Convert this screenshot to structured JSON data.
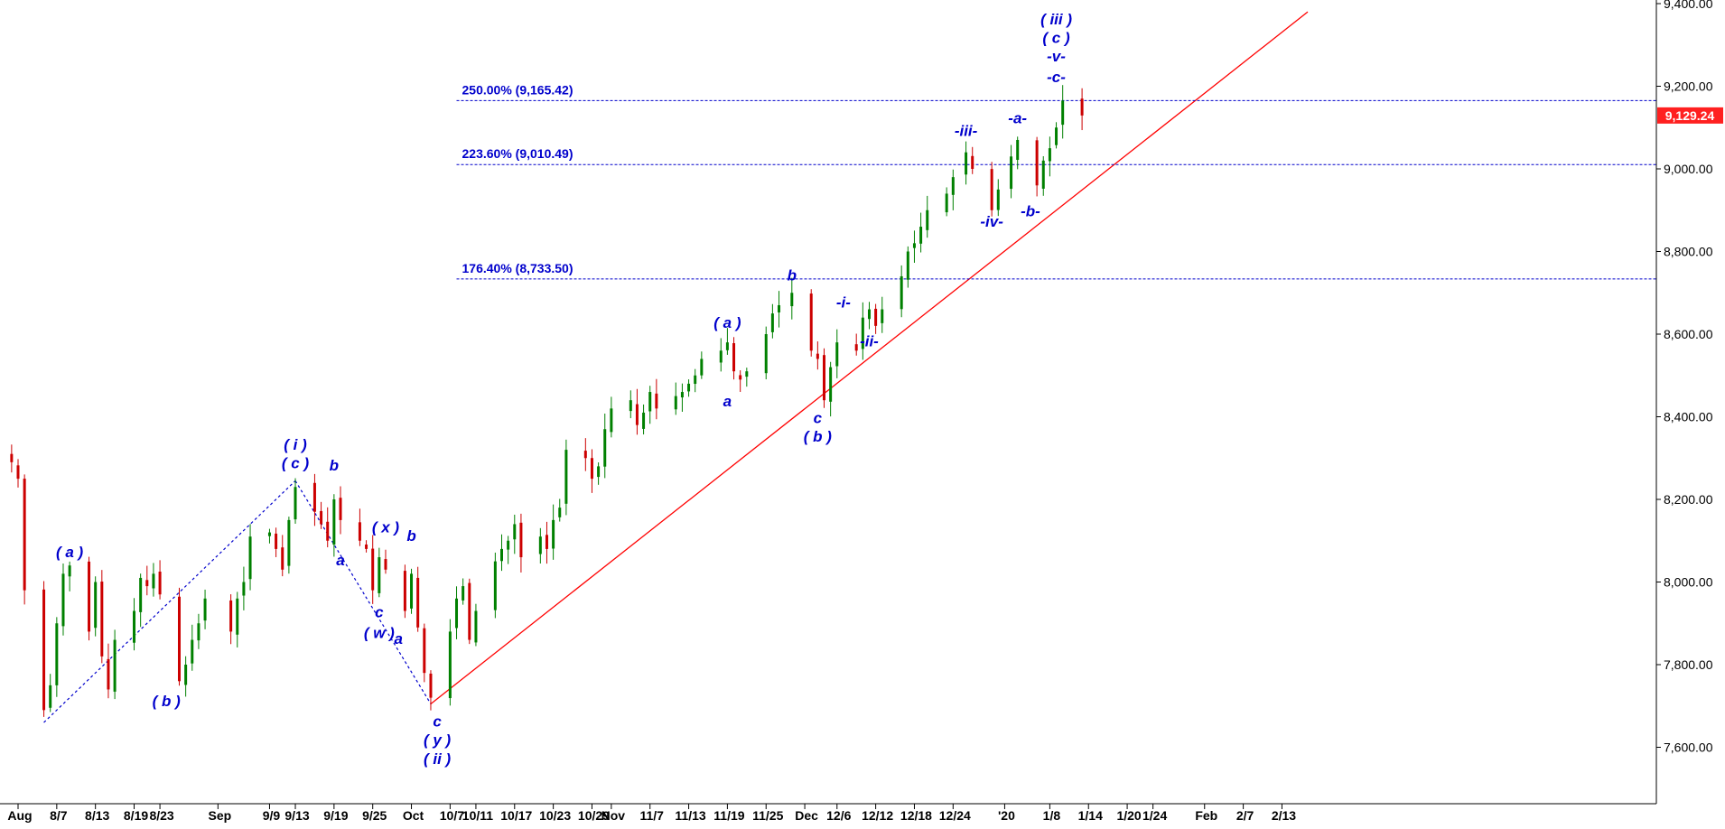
{
  "chart_data": {
    "type": "candlestick",
    "y_axis": {
      "range": [
        7440,
        9400
      ],
      "ticks": [
        "9,400.00",
        "9,200.00",
        "9,000.00",
        "8,800.00",
        "8,600.00",
        "8,400.00",
        "8,200.00",
        "8,000.00",
        "7,800.00",
        "7,600.00"
      ],
      "tick_values": [
        9400,
        9200,
        9000,
        8800,
        8600,
        8400,
        8200,
        8000,
        7800,
        7600
      ],
      "position": "right"
    },
    "x_axis": {
      "range": [
        "2019-07-31",
        "2020-02-17"
      ],
      "ticks": [
        {
          "label": "Aug",
          "date": "2019-08-01"
        },
        {
          "label": "8/7",
          "date": "2019-08-07"
        },
        {
          "label": "8/13",
          "date": "2019-08-13"
        },
        {
          "label": "8/19",
          "date": "2019-08-19"
        },
        {
          "label": "8/23",
          "date": "2019-08-23"
        },
        {
          "label": "Sep",
          "date": "2019-09-01"
        },
        {
          "label": "9/9",
          "date": "2019-09-09"
        },
        {
          "label": "9/13",
          "date": "2019-09-13"
        },
        {
          "label": "9/19",
          "date": "2019-09-19"
        },
        {
          "label": "9/25",
          "date": "2019-09-25"
        },
        {
          "label": "Oct",
          "date": "2019-10-01"
        },
        {
          "label": "10/7",
          "date": "2019-10-07"
        },
        {
          "label": "10/11",
          "date": "2019-10-11"
        },
        {
          "label": "10/17",
          "date": "2019-10-17"
        },
        {
          "label": "10/23",
          "date": "2019-10-23"
        },
        {
          "label": "10/29",
          "date": "2019-10-29"
        },
        {
          "label": "Nov",
          "date": "2019-11-01"
        },
        {
          "label": "11/7",
          "date": "2019-11-07"
        },
        {
          "label": "11/13",
          "date": "2019-11-13"
        },
        {
          "label": "11/19",
          "date": "2019-11-19"
        },
        {
          "label": "11/25",
          "date": "2019-11-25"
        },
        {
          "label": "Dec",
          "date": "2019-12-01"
        },
        {
          "label": "12/6",
          "date": "2019-12-06"
        },
        {
          "label": "12/12",
          "date": "2019-12-12"
        },
        {
          "label": "12/18",
          "date": "2019-12-18"
        },
        {
          "label": "12/24",
          "date": "2019-12-24"
        },
        {
          "label": "'20",
          "date": "2020-01-01"
        },
        {
          "label": "1/8",
          "date": "2020-01-08"
        },
        {
          "label": "1/14",
          "date": "2020-01-14"
        },
        {
          "label": "1/20",
          "date": "2020-01-20"
        },
        {
          "label": "1/24",
          "date": "2020-01-24"
        },
        {
          "label": "Feb",
          "date": "2020-02-01"
        },
        {
          "label": "2/7",
          "date": "2020-02-07"
        },
        {
          "label": "2/13",
          "date": "2020-02-13"
        }
      ]
    },
    "price_path": [
      {
        "date": "2019-07-31",
        "value": 8290
      },
      {
        "date": "2019-08-01",
        "value": 8250
      },
      {
        "date": "2019-08-02",
        "value": 7980
      },
      {
        "date": "2019-08-05",
        "value": 7690
      },
      {
        "date": "2019-08-06",
        "value": 7750
      },
      {
        "date": "2019-08-07",
        "value": 7900
      },
      {
        "date": "2019-08-08",
        "value": 8020
      },
      {
        "date": "2019-08-09",
        "value": 8040
      },
      {
        "date": "2019-08-12",
        "value": 7880
      },
      {
        "date": "2019-08-13",
        "value": 8000
      },
      {
        "date": "2019-08-14",
        "value": 7820
      },
      {
        "date": "2019-08-15",
        "value": 7740
      },
      {
        "date": "2019-08-16",
        "value": 7860
      },
      {
        "date": "2019-08-19",
        "value": 7930
      },
      {
        "date": "2019-08-20",
        "value": 8010
      },
      {
        "date": "2019-08-21",
        "value": 7990
      },
      {
        "date": "2019-08-22",
        "value": 8020
      },
      {
        "date": "2019-08-23",
        "value": 7970
      },
      {
        "date": "2019-08-26",
        "value": 7760
      },
      {
        "date": "2019-08-27",
        "value": 7800
      },
      {
        "date": "2019-08-28",
        "value": 7860
      },
      {
        "date": "2019-08-29",
        "value": 7900
      },
      {
        "date": "2019-08-30",
        "value": 7960
      },
      {
        "date": "2019-09-03",
        "value": 7880
      },
      {
        "date": "2019-09-04",
        "value": 7960
      },
      {
        "date": "2019-09-05",
        "value": 8000
      },
      {
        "date": "2019-09-06",
        "value": 8110
      },
      {
        "date": "2019-09-09",
        "value": 8120
      },
      {
        "date": "2019-09-10",
        "value": 8080
      },
      {
        "date": "2019-09-11",
        "value": 8030
      },
      {
        "date": "2019-09-12",
        "value": 8150
      },
      {
        "date": "2019-09-13",
        "value": 8230
      },
      {
        "date": "2019-09-16",
        "value": 8170
      },
      {
        "date": "2019-09-17",
        "value": 8140
      },
      {
        "date": "2019-09-18",
        "value": 8100
      },
      {
        "date": "2019-09-19",
        "value": 8200
      },
      {
        "date": "2019-09-20",
        "value": 8150
      },
      {
        "date": "2019-09-23",
        "value": 8100
      },
      {
        "date": "2019-09-24",
        "value": 8080
      },
      {
        "date": "2019-09-25",
        "value": 7980
      },
      {
        "date": "2019-09-26",
        "value": 8060
      },
      {
        "date": "2019-09-27",
        "value": 8030
      },
      {
        "date": "2019-09-30",
        "value": 7930
      },
      {
        "date": "2019-10-01",
        "value": 8020
      },
      {
        "date": "2019-10-02",
        "value": 7890
      },
      {
        "date": "2019-10-03",
        "value": 7780
      },
      {
        "date": "2019-10-04",
        "value": 7720
      },
      {
        "date": "2019-10-07",
        "value": 7880
      },
      {
        "date": "2019-10-08",
        "value": 7960
      },
      {
        "date": "2019-10-09",
        "value": 7990
      },
      {
        "date": "2019-10-10",
        "value": 7860
      },
      {
        "date": "2019-10-11",
        "value": 7930
      },
      {
        "date": "2019-10-14",
        "value": 8050
      },
      {
        "date": "2019-10-15",
        "value": 8080
      },
      {
        "date": "2019-10-16",
        "value": 8100
      },
      {
        "date": "2019-10-17",
        "value": 8140
      },
      {
        "date": "2019-10-18",
        "value": 8060
      },
      {
        "date": "2019-10-21",
        "value": 8110
      },
      {
        "date": "2019-10-22",
        "value": 8080
      },
      {
        "date": "2019-10-23",
        "value": 8150
      },
      {
        "date": "2019-10-24",
        "value": 8180
      },
      {
        "date": "2019-10-25",
        "value": 8320
      },
      {
        "date": "2019-10-28",
        "value": 8300
      },
      {
        "date": "2019-10-29",
        "value": 8250
      },
      {
        "date": "2019-10-30",
        "value": 8280
      },
      {
        "date": "2019-10-31",
        "value": 8370
      },
      {
        "date": "2019-11-01",
        "value": 8420
      },
      {
        "date": "2019-11-04",
        "value": 8440
      },
      {
        "date": "2019-11-05",
        "value": 8380
      },
      {
        "date": "2019-11-06",
        "value": 8410
      },
      {
        "date": "2019-11-07",
        "value": 8460
      },
      {
        "date": "2019-11-08",
        "value": 8420
      },
      {
        "date": "2019-11-11",
        "value": 8450
      },
      {
        "date": "2019-11-12",
        "value": 8460
      },
      {
        "date": "2019-11-13",
        "value": 8480
      },
      {
        "date": "2019-11-14",
        "value": 8500
      },
      {
        "date": "2019-11-15",
        "value": 8540
      },
      {
        "date": "2019-11-18",
        "value": 8560
      },
      {
        "date": "2019-11-19",
        "value": 8580
      },
      {
        "date": "2019-11-20",
        "value": 8510
      },
      {
        "date": "2019-11-21",
        "value": 8490
      },
      {
        "date": "2019-11-22",
        "value": 8510
      },
      {
        "date": "2019-11-25",
        "value": 8600
      },
      {
        "date": "2019-11-26",
        "value": 8650
      },
      {
        "date": "2019-11-27",
        "value": 8670
      },
      {
        "date": "2019-11-29",
        "value": 8700
      },
      {
        "date": "2019-12-02",
        "value": 8560
      },
      {
        "date": "2019-12-03",
        "value": 8540
      },
      {
        "date": "2019-12-04",
        "value": 8440
      },
      {
        "date": "2019-12-05",
        "value": 8520
      },
      {
        "date": "2019-12-06",
        "value": 8580
      },
      {
        "date": "2019-12-09",
        "value": 8560
      },
      {
        "date": "2019-12-10",
        "value": 8640
      },
      {
        "date": "2019-12-11",
        "value": 8660
      },
      {
        "date": "2019-12-12",
        "value": 8620
      },
      {
        "date": "2019-12-13",
        "value": 8660
      },
      {
        "date": "2019-12-16",
        "value": 8740
      },
      {
        "date": "2019-12-17",
        "value": 8800
      },
      {
        "date": "2019-12-18",
        "value": 8820
      },
      {
        "date": "2019-12-19",
        "value": 8860
      },
      {
        "date": "2019-12-20",
        "value": 8900
      },
      {
        "date": "2019-12-23",
        "value": 8940
      },
      {
        "date": "2019-12-24",
        "value": 8980
      },
      {
        "date": "2019-12-26",
        "value": 9040
      },
      {
        "date": "2019-12-27",
        "value": 9000
      },
      {
        "date": "2019-12-30",
        "value": 8900
      },
      {
        "date": "2019-12-31",
        "value": 8950
      },
      {
        "date": "2020-01-02",
        "value": 9030
      },
      {
        "date": "2020-01-03",
        "value": 9070
      },
      {
        "date": "2020-01-06",
        "value": 8960
      },
      {
        "date": "2020-01-07",
        "value": 9020
      },
      {
        "date": "2020-01-08",
        "value": 9050
      },
      {
        "date": "2020-01-09",
        "value": 9100
      },
      {
        "date": "2020-01-10",
        "value": 9165
      },
      {
        "date": "2020-01-13",
        "value": 9129.24
      }
    ],
    "last_price": "9,129.24",
    "fib_levels": [
      {
        "label": "250.00% (9,165.42)",
        "value": 9165.42
      },
      {
        "label": "223.60% (9,010.49)",
        "value": 9010.49
      },
      {
        "label": "176.40% (8,733.50)",
        "value": 8733.5
      }
    ],
    "wave_labels": [
      {
        "text": "( a )",
        "date": "2019-08-09",
        "value": 8060
      },
      {
        "text": "( b )",
        "date": "2019-08-24",
        "value": 7700
      },
      {
        "text": "( i )",
        "date": "2019-09-13",
        "value": 8320
      },
      {
        "text": "( c )",
        "date": "2019-09-13",
        "value": 8275
      },
      {
        "text": "b",
        "date": "2019-09-19",
        "value": 8270
      },
      {
        "text": "a",
        "date": "2019-09-20",
        "value": 8040
      },
      {
        "text": "( x )",
        "date": "2019-09-27",
        "value": 8120
      },
      {
        "text": "c",
        "date": "2019-09-26",
        "value": 7915
      },
      {
        "text": "( w )",
        "date": "2019-09-26",
        "value": 7865
      },
      {
        "text": "b",
        "date": "2019-10-01",
        "value": 8100
      },
      {
        "text": "a",
        "date": "2019-09-29",
        "value": 7850
      },
      {
        "text": "c",
        "date": "2019-10-05",
        "value": 7650
      },
      {
        "text": "( y )",
        "date": "2019-10-05",
        "value": 7605
      },
      {
        "text": "( ii )",
        "date": "2019-10-05",
        "value": 7560
      },
      {
        "text": "( a )",
        "date": "2019-11-19",
        "value": 8615
      },
      {
        "text": "a",
        "date": "2019-11-19",
        "value": 8425
      },
      {
        "text": "b",
        "date": "2019-11-29",
        "value": 8730
      },
      {
        "text": "c",
        "date": "2019-12-03",
        "value": 8385
      },
      {
        "text": "( b )",
        "date": "2019-12-03",
        "value": 8340
      },
      {
        "text": "-i-",
        "date": "2019-12-07",
        "value": 8665
      },
      {
        "text": "-ii-",
        "date": "2019-12-11",
        "value": 8570
      },
      {
        "text": "-iii-",
        "date": "2019-12-26",
        "value": 9080
      },
      {
        "text": "-iv-",
        "date": "2019-12-30",
        "value": 8860
      },
      {
        "text": "-a-",
        "date": "2020-01-03",
        "value": 9110
      },
      {
        "text": "-b-",
        "date": "2020-01-05",
        "value": 8885
      },
      {
        "text": "-c-",
        "date": "2020-01-09",
        "value": 9210
      },
      {
        "text": "-v-",
        "date": "2020-01-09",
        "value": 9260
      },
      {
        "text": "( c )",
        "date": "2020-01-09",
        "value": 9305
      },
      {
        "text": "( iii )",
        "date": "2020-01-09",
        "value": 9350
      }
    ],
    "channel_lines": [
      {
        "from": {
          "date": "2019-08-05",
          "value": 7660
        },
        "to": {
          "date": "2019-09-13",
          "value": 8245
        }
      },
      {
        "from": {
          "date": "2019-09-13",
          "value": 8245
        },
        "to": {
          "date": "2019-10-04",
          "value": 7705
        }
      }
    ],
    "trend_line": {
      "from": {
        "date": "2019-10-04",
        "value": 7705
      },
      "to": {
        "date": "2020-02-17",
        "value": 9380
      }
    },
    "colors": {
      "up_candle": "#008000",
      "down_candle": "#cc0000",
      "labels": "#0000cc",
      "fib_lines": "#0000cc",
      "trend_line": "#ff0000",
      "last_price_bg": "#ff2020",
      "axis": "#000000"
    }
  }
}
